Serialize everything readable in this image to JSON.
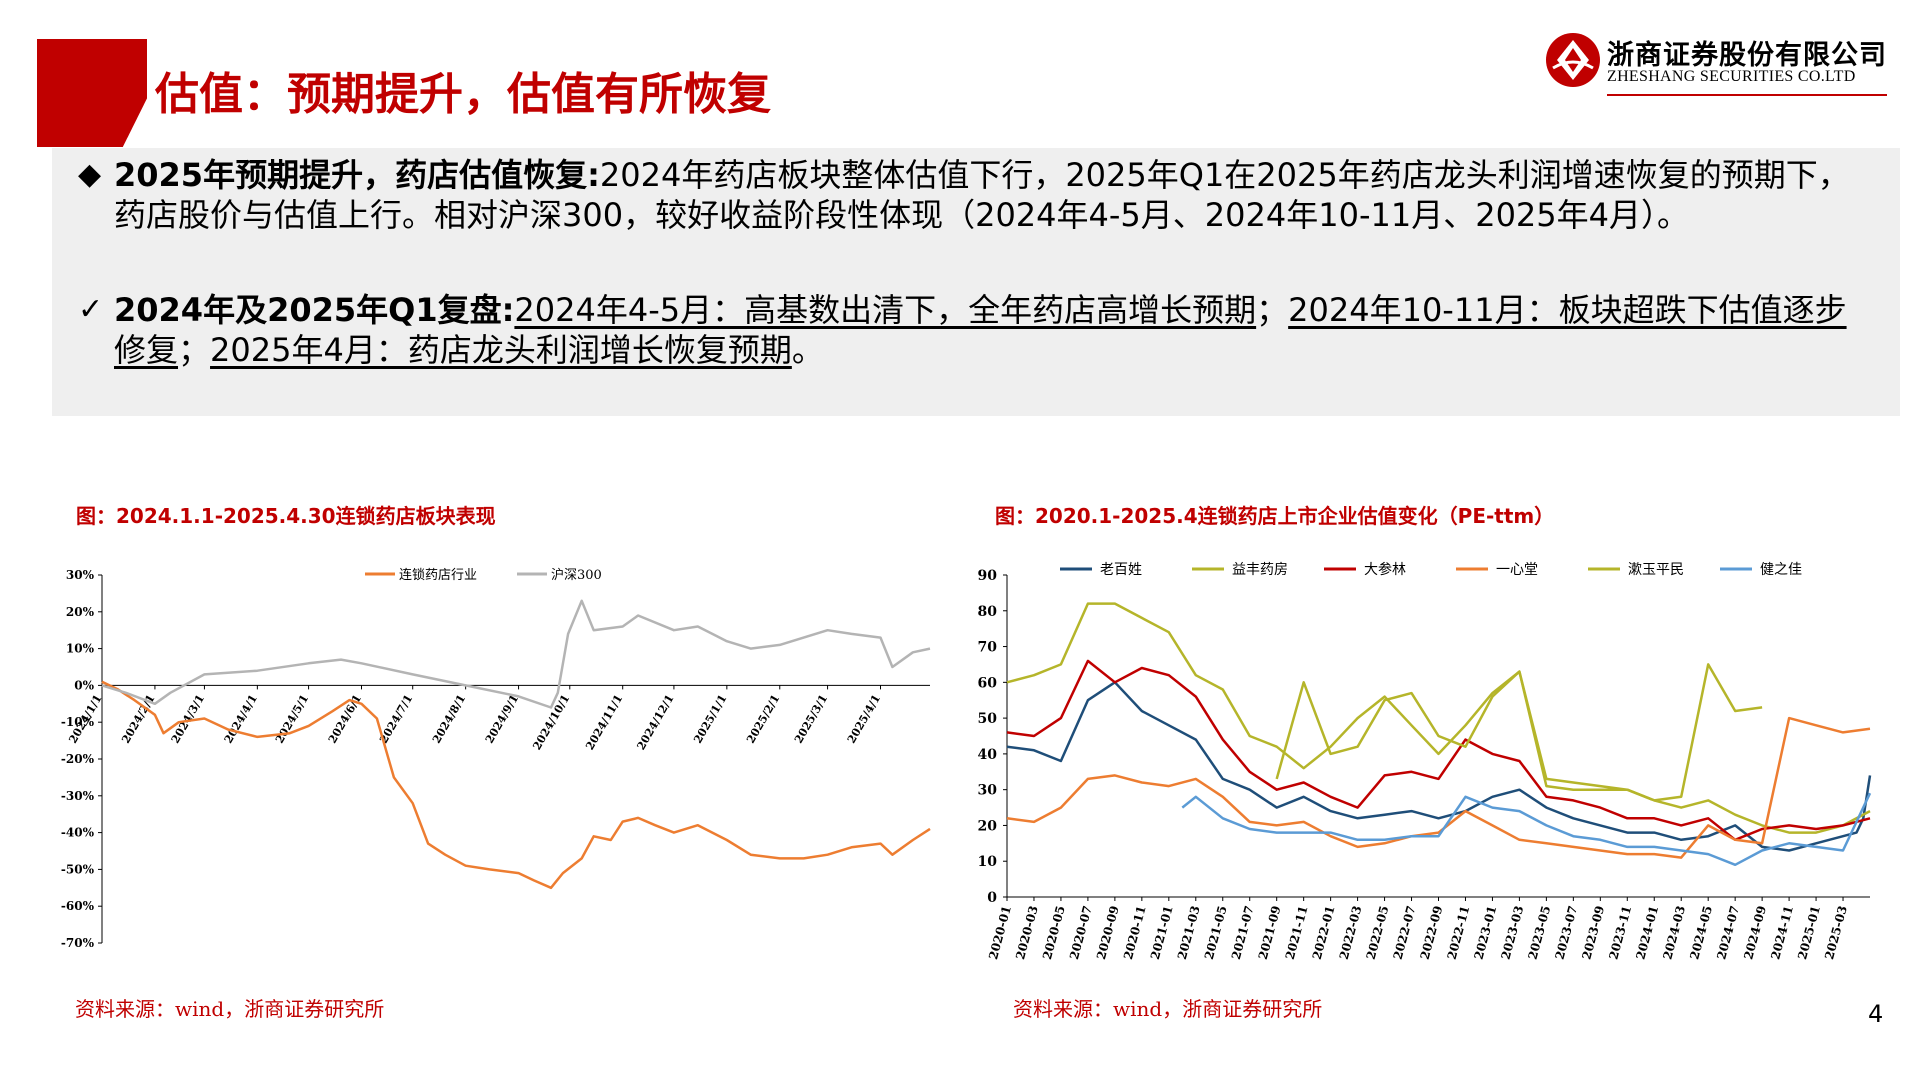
{
  "header": {
    "title": "估值：预期提升，估值有所恢复",
    "logo_cn": "浙商证券股份有限公司",
    "logo_en": "ZHESHANG SECURITIES CO.LTD"
  },
  "bullets": [
    {
      "symbol": "◆",
      "bold": "2025年预期提升，药店估值恢复:",
      "text": "2024年药店板块整体估值下行，2025年Q1在2025年药店龙头利润增速恢复的预期下，药店股价与估值上行。相对沪深300，较好收益阶段性体现（2024年4-5月、2024年10-11月、2025年4月）。"
    },
    {
      "symbol": "✓",
      "bold": "2024年及2025年Q1复盘:",
      "text_a": "2024年4-5月：高基数出清下，全年药店高增长预期",
      "sep1": "；",
      "text_b": "2024年10-11月：板块超跌下估值逐步修复",
      "sep2": "；",
      "text_c": "2025年4月：药店龙头利润增长恢复预期",
      "end": "。"
    }
  ],
  "chart1": {
    "caption": "图：2024.1.1-2025.4.30连锁药店板块表现",
    "source": "资料来源：wind，浙商证券研究所"
  },
  "chart2": {
    "caption": "图：2020.1-2025.4连锁药店上市企业估值变化（PE-ttm）",
    "source": "资料来源：wind，浙商证券研究所"
  },
  "page_number": "4",
  "colors": {
    "accent": "#c00000",
    "panel": "#efefef"
  },
  "chart_data": [
    {
      "type": "line",
      "title": "",
      "y_tick_labels": [
        "30%",
        "20%",
        "10%",
        "0%",
        "-10%",
        "-20%",
        "-30%",
        "-40%",
        "-50%",
        "-60%",
        "-70%"
      ],
      "ylim": [
        -70,
        30
      ],
      "x_tick_labels": [
        "2024/1/1",
        "2024/2/1",
        "2024/3/1",
        "2024/4/1",
        "2024/5/1",
        "2024/6/1",
        "2024/7/1",
        "2024/8/1",
        "2024/9/1",
        "2024/10/1",
        "2024/11/1",
        "2024/12/1",
        "2025/1/1",
        "2025/2/1",
        "2025/3/1",
        "2025/4/1"
      ],
      "x_start": "2024/1/1",
      "x_end": "2025/4/30",
      "legend_position": "top",
      "series": [
        {
          "name": "连锁药店行业",
          "color": "#ed7d31",
          "points": [
            [
              "2024/1/1",
              1
            ],
            [
              "2024/1/10",
              -1
            ],
            [
              "2024/1/20",
              -4
            ],
            [
              "2024/2/1",
              -8
            ],
            [
              "2024/2/6",
              -13
            ],
            [
              "2024/2/15",
              -10
            ],
            [
              "2024/3/1",
              -9
            ],
            [
              "2024/3/15",
              -12
            ],
            [
              "2024/4/1",
              -14
            ],
            [
              "2024/4/20",
              -13
            ],
            [
              "2024/5/1",
              -11
            ],
            [
              "2024/5/15",
              -7
            ],
            [
              "2024/5/25",
              -4
            ],
            [
              "2024/6/1",
              -5
            ],
            [
              "2024/6/10",
              -9
            ],
            [
              "2024/6/20",
              -25
            ],
            [
              "2024/7/1",
              -32
            ],
            [
              "2024/7/10",
              -43
            ],
            [
              "2024/7/20",
              -46
            ],
            [
              "2024/8/1",
              -49
            ],
            [
              "2024/8/15",
              -50
            ],
            [
              "2024/9/1",
              -51
            ],
            [
              "2024/9/10",
              -53
            ],
            [
              "2024/9/20",
              -55
            ],
            [
              "2024/9/27",
              -51
            ],
            [
              "2024/10/8",
              -47
            ],
            [
              "2024/10/15",
              -41
            ],
            [
              "2024/10/25",
              -42
            ],
            [
              "2024/11/1",
              -37
            ],
            [
              "2024/11/10",
              -36
            ],
            [
              "2024/11/20",
              -38
            ],
            [
              "2024/12/1",
              -40
            ],
            [
              "2024/12/15",
              -38
            ],
            [
              "2025/1/1",
              -42
            ],
            [
              "2025/1/15",
              -46
            ],
            [
              "2025/2/1",
              -47
            ],
            [
              "2025/2/15",
              -47
            ],
            [
              "2025/3/1",
              -46
            ],
            [
              "2025/3/15",
              -44
            ],
            [
              "2025/4/1",
              -43
            ],
            [
              "2025/4/8",
              -46
            ],
            [
              "2025/4/20",
              -42
            ],
            [
              "2025/4/30",
              -39
            ]
          ]
        },
        {
          "name": "沪深300",
          "color": "#b4b4b4",
          "points": [
            [
              "2024/1/1",
              0
            ],
            [
              "2024/1/15",
              -2
            ],
            [
              "2024/2/1",
              -5
            ],
            [
              "2024/2/10",
              -2
            ],
            [
              "2024/3/1",
              3
            ],
            [
              "2024/4/1",
              4
            ],
            [
              "2024/5/1",
              6
            ],
            [
              "2024/5/20",
              7
            ],
            [
              "2024/6/1",
              6
            ],
            [
              "2024/7/1",
              3
            ],
            [
              "2024/8/1",
              0
            ],
            [
              "2024/9/1",
              -3
            ],
            [
              "2024/9/20",
              -6
            ],
            [
              "2024/9/24",
              -2
            ],
            [
              "2024/9/30",
              14
            ],
            [
              "2024/10/8",
              23
            ],
            [
              "2024/10/15",
              15
            ],
            [
              "2024/11/1",
              16
            ],
            [
              "2024/11/10",
              19
            ],
            [
              "2024/12/1",
              15
            ],
            [
              "2024/12/15",
              16
            ],
            [
              "2025/1/1",
              12
            ],
            [
              "2025/1/15",
              10
            ],
            [
              "2025/2/1",
              11
            ],
            [
              "2025/3/1",
              15
            ],
            [
              "2025/3/15",
              14
            ],
            [
              "2025/4/1",
              13
            ],
            [
              "2025/4/8",
              5
            ],
            [
              "2025/4/20",
              9
            ],
            [
              "2025/4/30",
              10
            ]
          ]
        }
      ]
    },
    {
      "type": "line",
      "title": "",
      "y_tick_labels": [
        "0",
        "10",
        "20",
        "30",
        "40",
        "50",
        "60",
        "70",
        "80",
        "90"
      ],
      "ylim": [
        0,
        90
      ],
      "x_tick_labels": [
        "2020-01",
        "2020-03",
        "2020-05",
        "2020-07",
        "2020-09",
        "2020-11",
        "2021-01",
        "2021-03",
        "2021-05",
        "2021-07",
        "2021-09",
        "2021-11",
        "2022-01",
        "2022-03",
        "2022-05",
        "2022-07",
        "2022-09",
        "2022-11",
        "2023-01",
        "2023-03",
        "2023-05",
        "2023-07",
        "2023-09",
        "2023-11",
        "2024-01",
        "2024-03",
        "2024-05",
        "2024-07",
        "2024-09",
        "2024-11",
        "2025-01",
        "2025-03"
      ],
      "legend_position": "top",
      "series": [
        {
          "name": "老百姓",
          "color": "#1f4e79",
          "x": [
            0,
            2,
            4,
            6,
            8,
            10,
            12,
            14,
            16,
            18,
            20,
            22,
            24,
            26,
            28,
            30,
            32,
            34,
            36,
            38,
            40,
            42,
            44,
            46,
            48,
            50,
            52,
            54,
            56,
            58,
            60,
            62,
            63,
            63.5,
            64
          ],
          "values": [
            42,
            41,
            38,
            55,
            60,
            52,
            48,
            44,
            33,
            30,
            25,
            28,
            24,
            22,
            23,
            24,
            22,
            24,
            28,
            30,
            25,
            22,
            20,
            18,
            18,
            16,
            17,
            20,
            14,
            13,
            15,
            17,
            18,
            22,
            34
          ]
        },
        {
          "name": "益丰药房",
          "color": "#b5b52a",
          "x": [
            0,
            2,
            4,
            6,
            8,
            10,
            12,
            14,
            16,
            18,
            20,
            22,
            24,
            26,
            28,
            30,
            32,
            34,
            36,
            38,
            40,
            42,
            44,
            46,
            48,
            50,
            52,
            54,
            56,
            58,
            60,
            62,
            64
          ],
          "values": [
            60,
            62,
            65,
            82,
            82,
            78,
            74,
            62,
            58,
            45,
            42,
            36,
            42,
            50,
            56,
            48,
            40,
            48,
            57,
            63,
            31,
            30,
            30,
            30,
            27,
            25,
            27,
            23,
            20,
            18,
            18,
            20,
            24
          ]
        },
        {
          "name": "大参林",
          "color": "#c00000",
          "x": [
            0,
            2,
            4,
            6,
            8,
            10,
            12,
            14,
            16,
            18,
            20,
            22,
            24,
            26,
            28,
            30,
            32,
            34,
            36,
            38,
            40,
            42,
            44,
            46,
            48,
            50,
            52,
            54,
            56,
            58,
            60,
            62,
            64
          ],
          "values": [
            46,
            45,
            50,
            66,
            60,
            64,
            62,
            56,
            44,
            35,
            30,
            32,
            28,
            25,
            34,
            35,
            33,
            44,
            40,
            38,
            28,
            27,
            25,
            22,
            22,
            20,
            22,
            16,
            19,
            20,
            19,
            20,
            22
          ]
        },
        {
          "name": "一心堂",
          "color": "#ed7d31",
          "x": [
            0,
            2,
            4,
            6,
            8,
            10,
            12,
            14,
            16,
            18,
            20,
            22,
            24,
            26,
            28,
            30,
            32,
            34,
            36,
            38,
            40,
            42,
            44,
            46,
            48,
            50,
            52,
            54,
            56,
            58,
            60,
            62,
            64
          ],
          "values": [
            22,
            21,
            25,
            33,
            34,
            32,
            31,
            33,
            28,
            21,
            20,
            21,
            17,
            14,
            15,
            17,
            18,
            24,
            20,
            16,
            15,
            14,
            13,
            12,
            12,
            11,
            20,
            16,
            15,
            50,
            48,
            46,
            47
          ]
        },
        {
          "name": "漱玉平民",
          "color": "#b5b52a",
          "x": [
            20,
            22,
            24,
            26,
            28,
            30,
            32,
            34,
            36,
            38,
            40,
            42,
            44,
            46,
            48,
            50,
            52,
            54,
            56
          ],
          "values": [
            33,
            60,
            40,
            42,
            55,
            57,
            45,
            42,
            56,
            63,
            33,
            32,
            31,
            30,
            27,
            28,
            65,
            52,
            53
          ]
        },
        {
          "name": "健之佳",
          "color": "#5b9bd5",
          "x": [
            13,
            14,
            16,
            18,
            20,
            22,
            24,
            26,
            28,
            30,
            32,
            34,
            36,
            38,
            40,
            42,
            44,
            46,
            48,
            50,
            52,
            54,
            56,
            58,
            60,
            62,
            64
          ],
          "values": [
            25,
            28,
            22,
            19,
            18,
            18,
            18,
            16,
            16,
            17,
            17,
            28,
            25,
            24,
            20,
            17,
            16,
            14,
            14,
            13,
            12,
            9,
            13,
            15,
            14,
            13,
            29
          ]
        }
      ]
    }
  ]
}
